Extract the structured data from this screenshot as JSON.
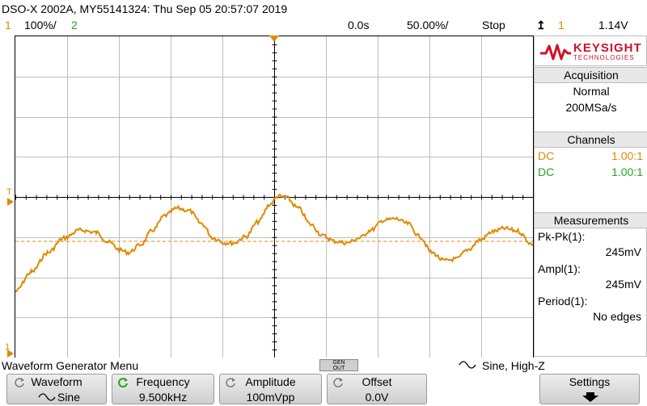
{
  "title_bar": {
    "text": "DSO-X 2002A, MY55141324: Thu Sep 05 20:57:07 2019"
  },
  "status_bar": {
    "ch1_number": "1",
    "ch1_scale": "100%/",
    "ch2_number": "2",
    "time_delay": "0.0s",
    "time_scale": "50.00%/",
    "run_state": "Stop",
    "trigger_source": "1",
    "trigger_level": "1.14V"
  },
  "brand": {
    "name": "KEYSIGHT",
    "sub": "TECHNOLOGIES"
  },
  "acquisition": {
    "title": "Acquisition",
    "mode": "Normal",
    "rate": "200MSa/s"
  },
  "channels": {
    "title": "Channels",
    "items": [
      {
        "coupling": "DC",
        "ratio": "1.00:1",
        "color": "#e08a00"
      },
      {
        "coupling": "DC",
        "ratio": "1.00:1",
        "color": "#22a51d"
      }
    ]
  },
  "measurements": {
    "title": "Measurements",
    "items": [
      {
        "label": "Pk-Pk(1):",
        "value": "245mV"
      },
      {
        "label": "Ampl(1):",
        "value": "245mV"
      },
      {
        "label": "Period(1):",
        "value": "No edges"
      }
    ]
  },
  "markers": {
    "trigger_level": "T",
    "ground": "1"
  },
  "menu": {
    "title": "Waveform Generator Menu",
    "gen_out": "GEN\nOUT",
    "wave_summary": "Sine, High-Z"
  },
  "softkeys": {
    "waveform": {
      "label": "Waveform",
      "value": "Sine"
    },
    "frequency": {
      "label": "Frequency",
      "value": "9.500kHz"
    },
    "amplitude": {
      "label": "Amplitude",
      "value": "100mVpp"
    },
    "offset": {
      "label": "Offset",
      "value": "0.0V"
    },
    "settings": {
      "label": "Settings"
    }
  },
  "colors": {
    "ch1": "#e08a00",
    "ch2": "#22a51d",
    "brand": "#d0112b"
  }
}
